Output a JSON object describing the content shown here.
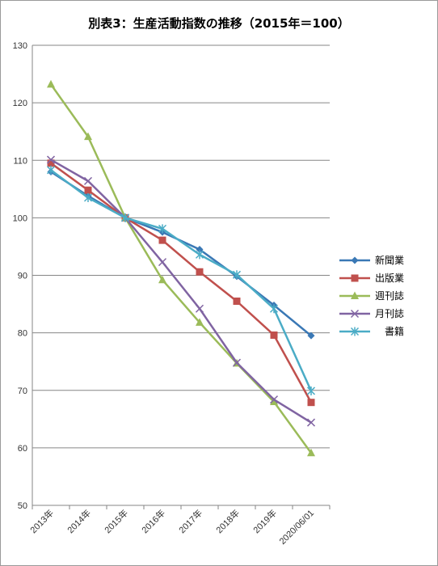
{
  "chart_data": {
    "type": "line",
    "title": "別表3：生産活動指数の推移（2015年＝100）",
    "categories": [
      "2013年",
      "2014年",
      "2015年",
      "2016年",
      "2017年",
      "2018年",
      "2019年",
      "2020/06/01"
    ],
    "ylim": [
      50,
      130
    ],
    "yticks": [
      50,
      60,
      70,
      80,
      90,
      100,
      110,
      120,
      130
    ],
    "grid": true,
    "legend_position": "right",
    "series": [
      {
        "name": "新聞業",
        "color": "#3a78b5",
        "marker": "diamond",
        "values": [
          108,
          103.8,
          100,
          97.5,
          94.5,
          89.8,
          84.8,
          79.5
        ]
      },
      {
        "name": "出版業",
        "color": "#c0504d",
        "marker": "square",
        "values": [
          109.5,
          104.8,
          100,
          96.1,
          90.6,
          85.5,
          79.6,
          67.9
        ]
      },
      {
        "name": "週刊誌",
        "color": "#9bbb59",
        "marker": "triangle",
        "values": [
          123.2,
          114.1,
          100,
          89.2,
          81.8,
          74.7,
          68,
          59.1
        ]
      },
      {
        "name": "月刊誌",
        "color": "#8064a2",
        "marker": "x",
        "values": [
          110.1,
          106.4,
          100,
          92.3,
          84.2,
          74.8,
          68.4,
          64.4
        ]
      },
      {
        "name": "書籍",
        "color": "#4bacc6",
        "marker": "star",
        "values": [
          108.3,
          103.5,
          100,
          98.1,
          93.6,
          90.1,
          84.2,
          69.9
        ]
      }
    ]
  }
}
